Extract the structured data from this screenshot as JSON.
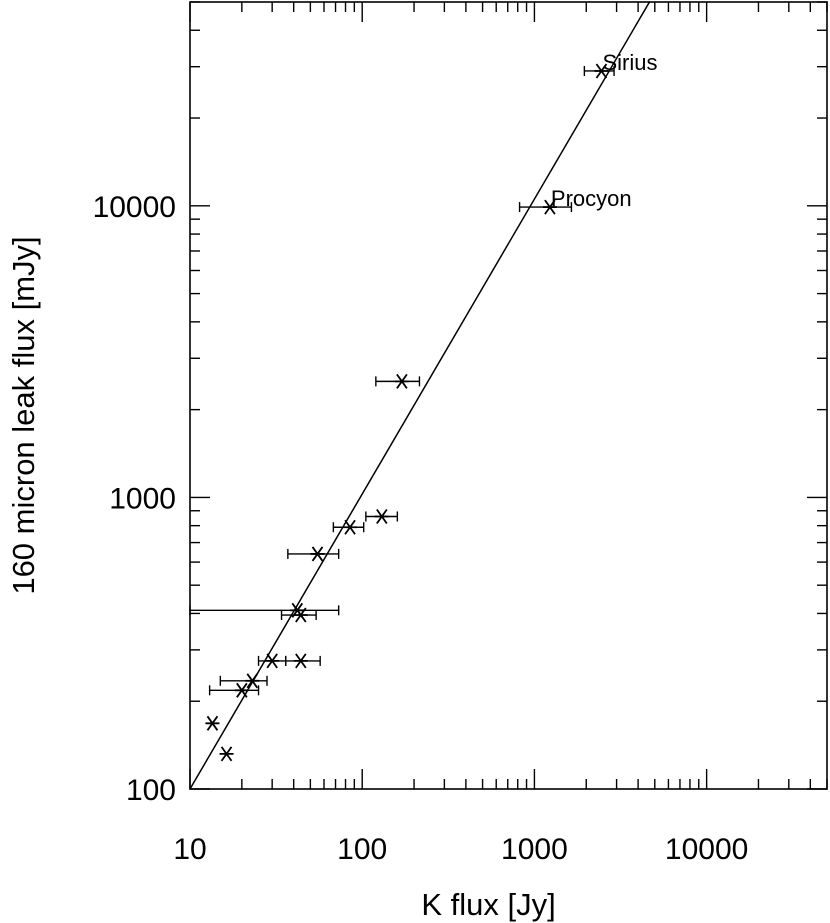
{
  "chart_data": {
    "type": "scatter",
    "title": "",
    "xlabel": "K flux [Jy]",
    "ylabel": "160 micron leak flux [mJy]",
    "xscale": "log",
    "yscale": "log",
    "xlim": [
      10,
      50000
    ],
    "ylim": [
      100,
      50000
    ],
    "grid": false,
    "x_ticks": [
      10,
      100,
      1000,
      10000
    ],
    "x_tick_labels": [
      "10",
      "100",
      "1000",
      "10000"
    ],
    "y_ticks": [
      100,
      1000,
      10000
    ],
    "y_tick_labels": [
      "100",
      "1000",
      "10000"
    ],
    "points": [
      {
        "x": 2450,
        "y": 29000,
        "xerr": [
          1950,
          2900
        ],
        "label": "Sirius"
      },
      {
        "x": 1230,
        "y": 9900,
        "xerr": [
          820,
          1640
        ],
        "label": "Procyon"
      },
      {
        "x": 170,
        "y": 2500,
        "xerr": [
          120,
          215
        ]
      },
      {
        "x": 130,
        "y": 860,
        "xerr": [
          105,
          160
        ]
      },
      {
        "x": 85,
        "y": 790,
        "xerr": [
          68,
          102
        ]
      },
      {
        "x": 55,
        "y": 640,
        "xerr": [
          37,
          73
        ]
      },
      {
        "x": 42,
        "y": 410,
        "xerr": [
          10,
          73
        ]
      },
      {
        "x": 44,
        "y": 395,
        "xerr": [
          34,
          54
        ]
      },
      {
        "x": 30,
        "y": 275,
        "xerr": [
          25,
          36
        ]
      },
      {
        "x": 44,
        "y": 275,
        "xerr": [
          36,
          57
        ]
      },
      {
        "x": 23,
        "y": 235,
        "xerr": [
          15,
          28
        ]
      },
      {
        "x": 20,
        "y": 218,
        "xerr": [
          13,
          25
        ]
      },
      {
        "x": 13.5,
        "y": 168
      },
      {
        "x": 16.3,
        "y": 132
      }
    ],
    "fit_line": {
      "x": [
        10,
        5300
      ],
      "y": [
        100,
        57000
      ]
    }
  }
}
